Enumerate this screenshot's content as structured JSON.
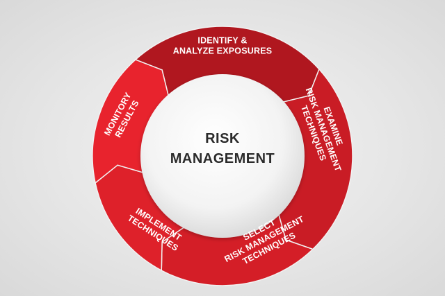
{
  "diagram": {
    "center": {
      "lines": [
        "RISK",
        "MANAGEMENT"
      ]
    },
    "steps": [
      {
        "lines": [
          "IDENTIFY &",
          "ANALYZE EXPOSURES"
        ]
      },
      {
        "lines": [
          "EXAMINE",
          "RISK MANAGEMENT",
          "TECHNIQUES"
        ]
      },
      {
        "lines": [
          "SELECT",
          "RISK MANAGEMENT",
          "TECHNIQUES"
        ]
      },
      {
        "lines": [
          "IMPLEMENT",
          "TECHNIQUES"
        ]
      },
      {
        "lines": [
          "MONITORY",
          "RESULTS"
        ]
      }
    ],
    "colors": {
      "ring_light": "#e8232d",
      "ring_dark": "#b01820",
      "arrow_top": "#a8151c",
      "text": "#ffffff",
      "center_text": "#2b2b2b"
    }
  }
}
